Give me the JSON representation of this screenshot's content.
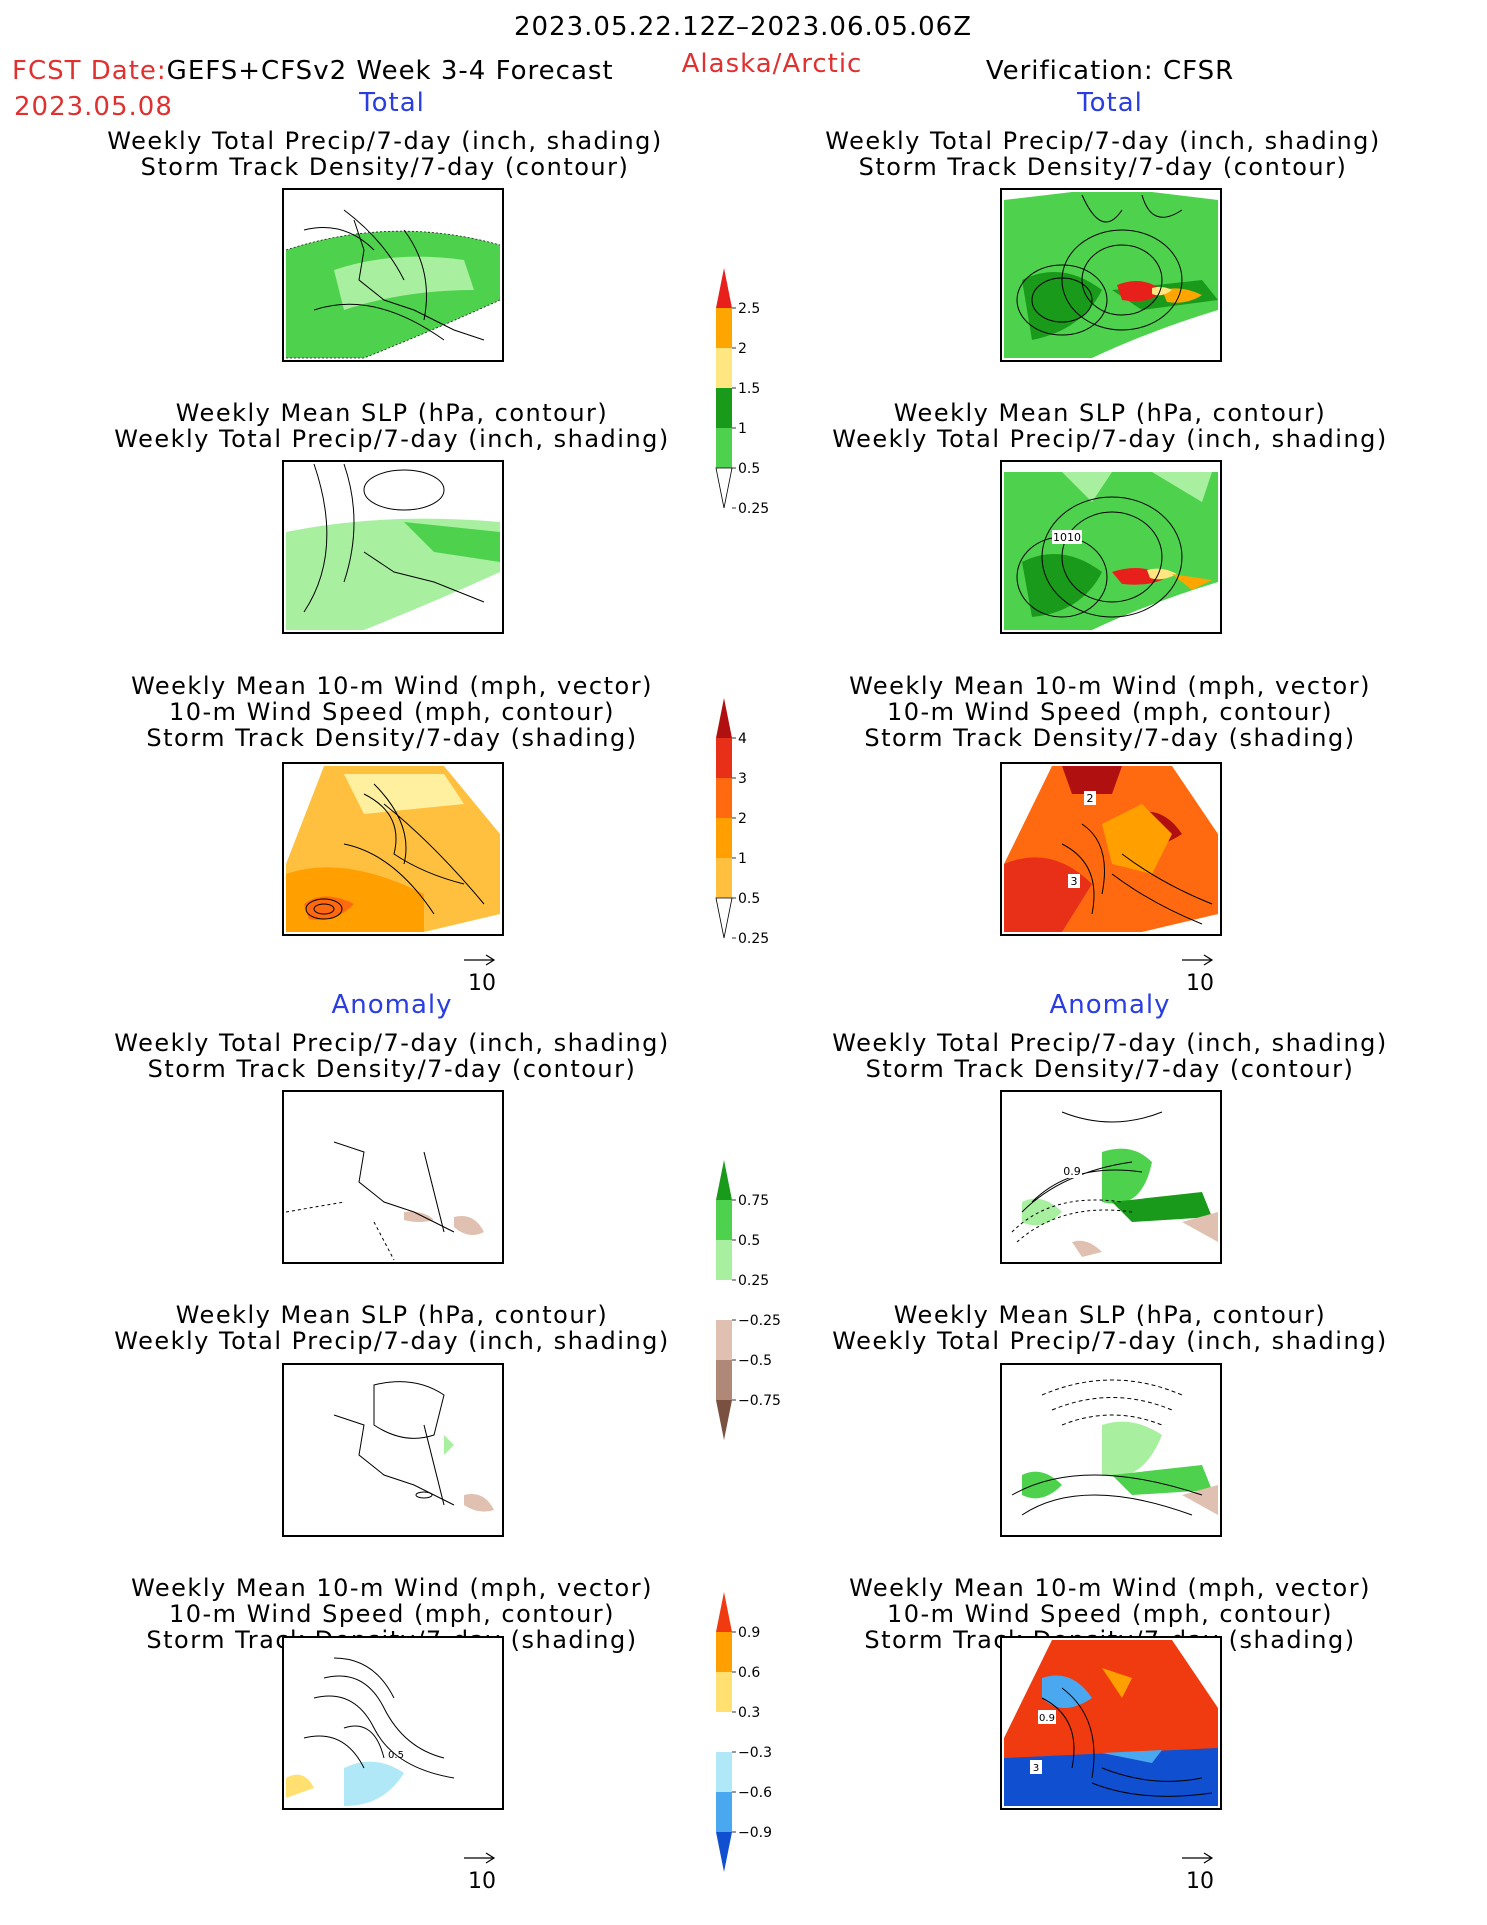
{
  "header": {
    "date_range": "2023.05.22.12Z–2023.06.05.06Z",
    "fcst_date_label": "FCST Date:",
    "model": "GEFS+CFSv2 Week 3-4 Forecast",
    "fcst_date": "2023.05.08",
    "region": "Alaska/Arctic",
    "verification": "Verification: CFSR"
  },
  "sections": {
    "total_left": "Total",
    "total_right": "Total",
    "anomaly_left": "Anomaly",
    "anomaly_right": "Anomaly"
  },
  "titles": {
    "precip_storm": [
      "Weekly Total Precip/7-day (inch, shading)",
      "Storm Track Density/7-day (contour)"
    ],
    "slp_precip": [
      "Weekly Mean SLP (hPa, contour)",
      "Weekly Total Precip/7-day (inch, shading)"
    ],
    "wind_storm": [
      "Weekly Mean 10-m Wind (mph, vector)",
      "10-m Wind Speed (mph, contour)",
      "Storm Track Density/7-day (shading)"
    ]
  },
  "panel_labels": {
    "slp_total_right": "1010",
    "wind_total_right_a": "2",
    "wind_total_right_b": "3",
    "precip_anom_right": "0.9",
    "wind_anom_left": "0.5",
    "wind_anom_right_a": "0.9",
    "wind_anom_right_b": "3"
  },
  "wind_reference": "10",
  "colorbars": {
    "precip_total": {
      "ticks": [
        "2.5",
        "2",
        "1.5",
        "1",
        "0.5",
        "0.25"
      ],
      "colors": [
        "#e8201c",
        "#ffa500",
        "#ffe680",
        "#1a9a1a",
        "#4ed24e",
        "#a8f0a0"
      ]
    },
    "storm_total": {
      "ticks": [
        "4",
        "3",
        "2",
        "1",
        "0.5",
        "0.25"
      ],
      "colors": [
        "#b01010",
        "#e83018",
        "#ff6a10",
        "#ff9f00",
        "#ffc040",
        "#fff0a0"
      ]
    },
    "precip_anom": {
      "ticks": [
        "0.75",
        "0.5",
        "0.25",
        "−0.25",
        "−0.5",
        "−0.75"
      ],
      "colors": [
        "#1a9a1a",
        "#4ed24e",
        "#a8f0a0",
        "#ffffff",
        "#e0c0b0",
        "#b08878",
        "#7a5040"
      ]
    },
    "storm_anom": {
      "ticks": [
        "0.9",
        "0.6",
        "0.3",
        "−0.3",
        "−0.6",
        "−0.9"
      ],
      "colors": [
        "#f03a10",
        "#ffa000",
        "#ffe070",
        "#ffffff",
        "#b0e8f8",
        "#4aa8f0",
        "#1050d0"
      ]
    }
  }
}
